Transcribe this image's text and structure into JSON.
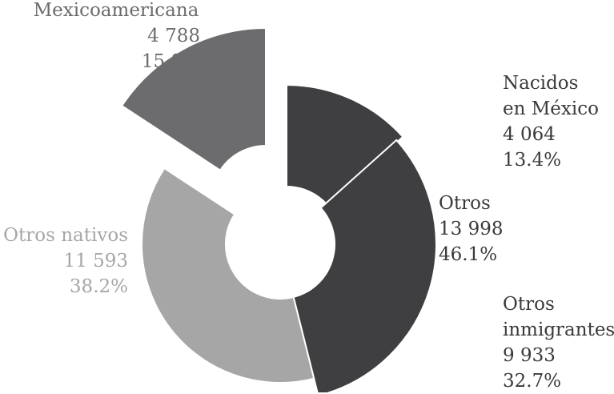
{
  "chart_data": {
    "type": "pie",
    "title": "",
    "slices": [
      {
        "label": "Nacidos en México",
        "value": 4064,
        "value_text": "4 064",
        "percent": "13.4%",
        "color": "#3f3f41",
        "group": "Otros"
      },
      {
        "label": "Otros inmigrantes",
        "value": 9933,
        "value_text": "9 933",
        "percent": "32.7%",
        "color": "#3f3f41",
        "group": "Otros"
      },
      {
        "label": "Otros nativos",
        "value": 11593,
        "value_text": "11 593",
        "percent": "38.2%",
        "color": "#a6a6a7",
        "group": null
      },
      {
        "label": "Mexicoamericana",
        "value": 4788,
        "value_text": "4 788",
        "percent": "15.8%",
        "color": "#6c6c6e",
        "group": null
      }
    ],
    "group_label": {
      "name": "Otros",
      "value_text": "13 998",
      "percent": "46.1%"
    }
  },
  "labels": {
    "mexicoamericana": {
      "line1": "Mexicoamericana",
      "value": "4 788",
      "percent": "15.8%"
    },
    "nacidos": {
      "line1": "Nacidos",
      "line2": "en México",
      "value": "4 064",
      "percent": "13.4%"
    },
    "otros": {
      "line1": "Otros",
      "value": "13 998",
      "percent": "46.1%"
    },
    "otros_nativos": {
      "line1": "Otros nativos",
      "value": "11 593",
      "percent": "38.2%"
    },
    "otros_inmigrantes": {
      "line1": "Otros",
      "line2": "inmigrantes",
      "value": "9 933",
      "percent": "32.7%"
    }
  }
}
